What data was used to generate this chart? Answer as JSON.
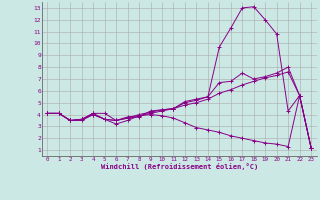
{
  "xlabel": "Windchill (Refroidissement éolien,°C)",
  "background_color": "#cce8e4",
  "grid_color": "#aaaaaa",
  "line_color": "#880088",
  "x_ticks": [
    0,
    1,
    2,
    3,
    4,
    5,
    6,
    7,
    8,
    9,
    10,
    11,
    12,
    13,
    14,
    15,
    16,
    17,
    18,
    19,
    20,
    21,
    22,
    23
  ],
  "y_ticks": [
    1,
    2,
    3,
    4,
    5,
    6,
    7,
    8,
    9,
    10,
    11,
    12,
    13
  ],
  "xlim": [
    -0.5,
    23.5
  ],
  "ylim": [
    0.5,
    13.5
  ],
  "series": [
    [
      4.1,
      4.1,
      3.5,
      3.6,
      4.1,
      4.1,
      3.5,
      3.7,
      3.8,
      4.3,
      4.4,
      4.5,
      5.1,
      5.3,
      5.5,
      6.7,
      6.8,
      7.5,
      7.0,
      7.2,
      7.5,
      8.0,
      5.6,
      1.2
    ],
    [
      4.1,
      4.1,
      3.5,
      3.6,
      4.0,
      3.6,
      3.2,
      3.5,
      3.9,
      4.1,
      4.3,
      4.5,
      5.0,
      5.2,
      5.5,
      9.7,
      11.3,
      13.0,
      13.1,
      12.0,
      10.8,
      4.3,
      5.6,
      1.2
    ],
    [
      4.1,
      4.1,
      3.5,
      3.6,
      4.1,
      3.6,
      3.5,
      3.8,
      3.9,
      4.0,
      3.9,
      3.7,
      3.3,
      2.9,
      2.7,
      2.5,
      2.2,
      2.0,
      1.8,
      1.6,
      1.5,
      1.3,
      5.6,
      1.2
    ],
    [
      4.1,
      4.1,
      3.5,
      3.5,
      4.0,
      3.6,
      3.5,
      3.7,
      4.0,
      4.2,
      4.4,
      4.5,
      4.8,
      5.0,
      5.3,
      5.8,
      6.1,
      6.5,
      6.8,
      7.1,
      7.3,
      7.6,
      5.6,
      1.2
    ]
  ]
}
